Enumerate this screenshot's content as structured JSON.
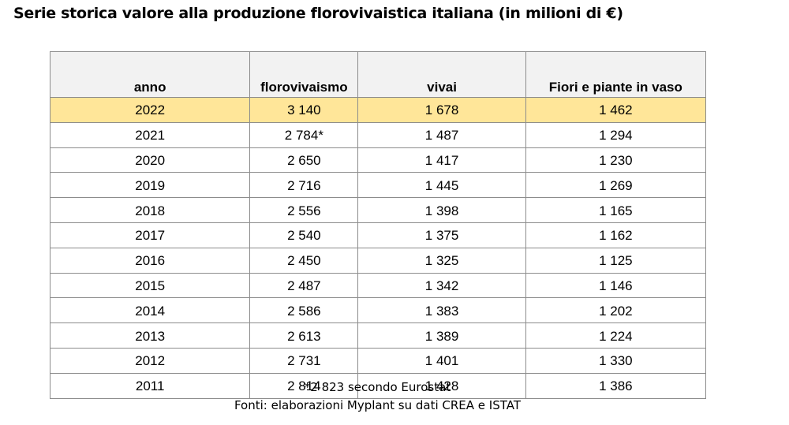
{
  "title": "Serie storica valore alla produzione florovivaistica italiana (in milioni di €)",
  "table": {
    "headers": [
      "anno",
      "florovivaismo",
      "vivai",
      "Fiori e piante in vaso"
    ],
    "rows": [
      [
        "2022",
        "3 140",
        "1 678",
        "1 462"
      ],
      [
        "2021",
        "2 784*",
        "1 487",
        "1 294"
      ],
      [
        "2020",
        "2 650",
        "1 417",
        "1 230"
      ],
      [
        "2019",
        "2 716",
        "1 445",
        "1 269"
      ],
      [
        "2018",
        "2 556",
        "1 398",
        "1 165"
      ],
      [
        "2017",
        "2 540",
        "1 375",
        "1 162"
      ],
      [
        "2016",
        "2 450",
        "1 325",
        "1 125"
      ],
      [
        "2015",
        "2 487",
        "1 342",
        "1 146"
      ],
      [
        "2014",
        "2 586",
        "1 383",
        "1 202"
      ],
      [
        "2013",
        "2 613",
        "1 389",
        "1 224"
      ],
      [
        "2012",
        "2 731",
        "1 401",
        "1 330"
      ],
      [
        "2011",
        "2 814",
        "1 428",
        "1 386"
      ]
    ],
    "highlight_row_color": "#ffe699",
    "header_background": "#f2f2f2",
    "border_color": "#8c8c8c"
  },
  "footnotes": {
    "eurostat": "*2 823 secondo Eurostat",
    "sources": "Fonti: elaborazioni Myplant su dati CREA e ISTAT"
  }
}
